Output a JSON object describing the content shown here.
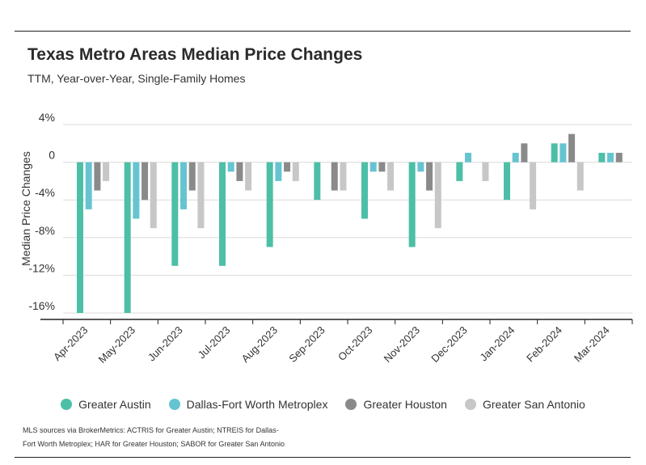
{
  "title": "Texas Metro Areas Median Price Changes",
  "subtitle": "TTM, Year-over-Year, Single-Family Homes",
  "source_note": "MLS sources via BrokerMetrics: ACTRIS for Greater Austin; NTREIS for Dallas-Fort Worth Metroplex; HAR for Greater Houston; SABOR for Greater San Antonio",
  "chart_data": {
    "type": "bar",
    "title": "Texas Metro Areas Median Price Changes",
    "subtitle": "TTM, Year-over-Year, Single-Family Homes",
    "xlabel": "",
    "ylabel": "Median Price Changes",
    "ylim": [
      -16,
      4
    ],
    "yticks": [
      4,
      0,
      -4,
      -8,
      -12,
      -16
    ],
    "ytick_labels": [
      "4%",
      "0",
      "-4%",
      "-8%",
      "-12%",
      "-16%"
    ],
    "grid": true,
    "legend_position": "bottom",
    "categories": [
      "Apr-2023",
      "May-2023",
      "Jun-2023",
      "Jul-2023",
      "Aug-2023",
      "Sep-2023",
      "Oct-2023",
      "Nov-2023",
      "Dec-2023",
      "Jan-2024",
      "Feb-2024",
      "Mar-2024"
    ],
    "series": [
      {
        "name": "Greater Austin",
        "color": "#4dbfa6",
        "values": [
          -16,
          -16,
          -11,
          -11,
          -9,
          -4,
          -6,
          -9,
          -2,
          -4,
          2,
          1
        ]
      },
      {
        "name": "Dallas-Fort Worth Metroplex",
        "color": "#66c4d2",
        "values": [
          -5,
          -6,
          -5,
          -1,
          -2,
          0,
          -1,
          -1,
          1,
          1,
          2,
          1
        ]
      },
      {
        "name": "Greater Houston",
        "color": "#8a8a8a",
        "values": [
          -3,
          -4,
          -3,
          -2,
          -1,
          -3,
          -1,
          -3,
          0,
          2,
          3,
          1
        ]
      },
      {
        "name": "Greater San Antonio",
        "color": "#c7c7c7",
        "values": [
          -2,
          -7,
          -7,
          -3,
          -2,
          -3,
          -3,
          -7,
          -2,
          -5,
          -3,
          0
        ]
      }
    ]
  }
}
